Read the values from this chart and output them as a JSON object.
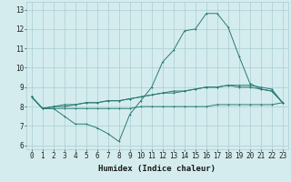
{
  "x_values": [
    0,
    1,
    2,
    3,
    4,
    5,
    6,
    7,
    8,
    9,
    10,
    11,
    12,
    13,
    14,
    15,
    16,
    17,
    18,
    19,
    20,
    21,
    22,
    23
  ],
  "line1": [
    8.5,
    7.9,
    7.9,
    7.5,
    7.1,
    7.1,
    6.9,
    6.6,
    6.2,
    7.6,
    8.3,
    9.0,
    10.3,
    10.9,
    11.9,
    12.0,
    12.8,
    12.8,
    12.1,
    10.6,
    9.2,
    8.9,
    8.8,
    8.2
  ],
  "line2": [
    8.5,
    7.9,
    8.0,
    8.1,
    8.1,
    8.2,
    8.2,
    8.3,
    8.3,
    8.4,
    8.5,
    8.6,
    8.7,
    8.7,
    8.8,
    8.9,
    9.0,
    9.0,
    9.1,
    9.1,
    9.1,
    9.0,
    8.9,
    8.2
  ],
  "line3": [
    8.5,
    7.9,
    8.0,
    8.0,
    8.1,
    8.2,
    8.2,
    8.3,
    8.3,
    8.4,
    8.5,
    8.6,
    8.7,
    8.8,
    8.8,
    8.9,
    9.0,
    9.0,
    9.1,
    9.0,
    9.0,
    8.9,
    8.8,
    8.2
  ],
  "line4": [
    8.5,
    7.9,
    7.9,
    7.9,
    7.9,
    7.9,
    7.9,
    7.9,
    7.9,
    7.9,
    8.0,
    8.0,
    8.0,
    8.0,
    8.0,
    8.0,
    8.0,
    8.1,
    8.1,
    8.1,
    8.1,
    8.1,
    8.1,
    8.2
  ],
  "color": "#2a7b72",
  "bg_color": "#d4ecee",
  "grid_color": "#a8cdd4",
  "xlabel": "Humidex (Indice chaleur)",
  "xlim": [
    -0.5,
    23.5
  ],
  "ylim": [
    5.8,
    13.4
  ],
  "yticks": [
    6,
    7,
    8,
    9,
    10,
    11,
    12,
    13
  ],
  "xticks": [
    0,
    1,
    2,
    3,
    4,
    5,
    6,
    7,
    8,
    9,
    10,
    11,
    12,
    13,
    14,
    15,
    16,
    17,
    18,
    19,
    20,
    21,
    22,
    23
  ],
  "tick_fontsize": 5.5,
  "xlabel_fontsize": 6.5
}
